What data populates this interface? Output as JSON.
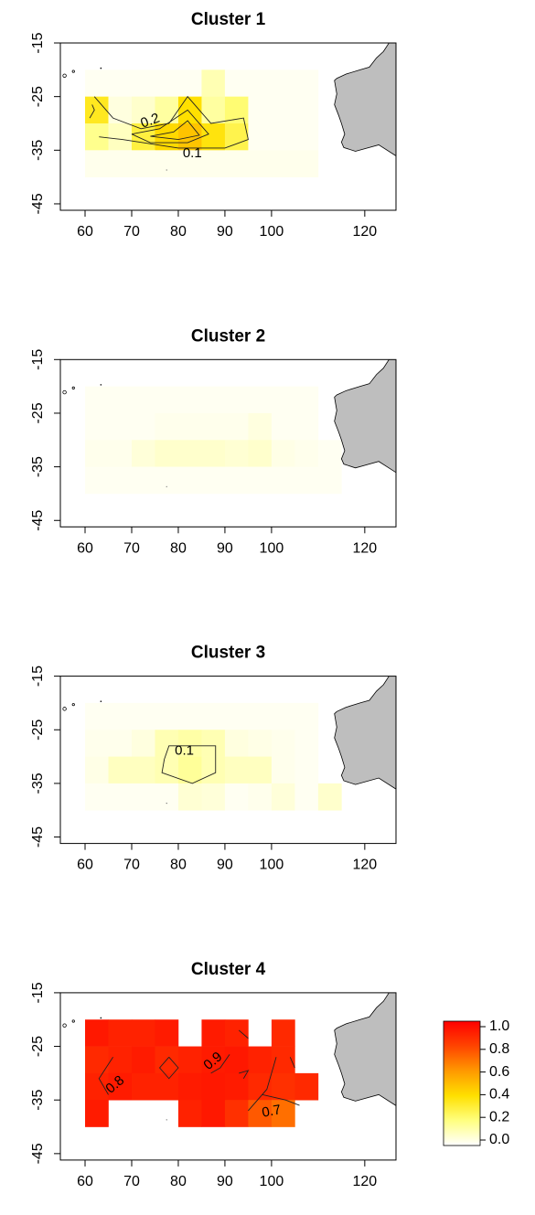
{
  "chart_data": [
    {
      "type": "heatmap",
      "title": "Cluster 1",
      "x": [
        62.5,
        67.5,
        72.5,
        77.5,
        82.5,
        87.5,
        92.5,
        97.5,
        102.5,
        107.5,
        112.5
      ],
      "y": [
        -22.5,
        -27.5,
        -32.5,
        -37.5
      ],
      "z": [
        [
          0.02,
          0.02,
          0.02,
          0.02,
          0.02,
          0.12,
          0.02,
          0.02,
          0.02,
          0.02,
          null
        ],
        [
          0.35,
          0.05,
          0.08,
          0.15,
          0.4,
          0.15,
          0.22,
          0.02,
          0.02,
          0.02,
          null
        ],
        [
          0.18,
          0.1,
          0.3,
          0.42,
          0.48,
          0.38,
          0.28,
          0.02,
          0.02,
          0.02,
          null
        ],
        [
          0.03,
          0.03,
          0.03,
          0.03,
          0.03,
          0.03,
          0.03,
          0.03,
          0.03,
          0.03,
          null
        ]
      ],
      "contour_labels": [
        "0.2",
        "0.1"
      ],
      "xlim": [
        54.7,
        126.7
      ],
      "ylim": [
        -46.2,
        -15
      ],
      "xticks": [
        60,
        70,
        80,
        90,
        100,
        120
      ],
      "yticks": [
        -15,
        -25,
        -35,
        -45
      ]
    },
    {
      "type": "heatmap",
      "title": "Cluster 2",
      "x": [
        62.5,
        67.5,
        72.5,
        77.5,
        82.5,
        87.5,
        92.5,
        97.5,
        102.5,
        107.5,
        112.5
      ],
      "y": [
        -22.5,
        -27.5,
        -32.5,
        -37.5
      ],
      "z": [
        [
          0.02,
          0.02,
          0.02,
          0.02,
          0.02,
          0.02,
          0.02,
          0.02,
          0.02,
          0.02,
          null
        ],
        [
          0.02,
          0.02,
          0.02,
          0.03,
          0.03,
          0.03,
          0.03,
          0.05,
          0.02,
          0.02,
          null
        ],
        [
          0.03,
          0.03,
          0.06,
          0.08,
          0.08,
          0.08,
          0.07,
          0.08,
          0.04,
          0.03,
          0.02
        ],
        [
          0.02,
          0.02,
          0.02,
          0.02,
          0.02,
          0.02,
          0.02,
          0.02,
          0.02,
          0.02,
          0.02
        ]
      ],
      "contour_labels": [],
      "xlim": [
        54.7,
        126.7
      ],
      "ylim": [
        -46.2,
        -15
      ],
      "xticks": [
        60,
        70,
        80,
        90,
        100,
        120
      ],
      "yticks": [
        -15,
        -25,
        -35,
        -45
      ]
    },
    {
      "type": "heatmap",
      "title": "Cluster 3",
      "x": [
        62.5,
        67.5,
        72.5,
        77.5,
        82.5,
        87.5,
        92.5,
        97.5,
        102.5,
        107.5,
        112.5
      ],
      "y": [
        -22.5,
        -27.5,
        -32.5,
        -37.5
      ],
      "z": [
        [
          0.02,
          0.02,
          0.02,
          0.02,
          0.02,
          0.02,
          0.02,
          0.02,
          0.02,
          0.02,
          null
        ],
        [
          0.03,
          0.03,
          0.05,
          0.12,
          0.14,
          0.12,
          0.05,
          0.04,
          0.03,
          0.02,
          null
        ],
        [
          0.04,
          0.1,
          0.1,
          0.12,
          0.16,
          0.12,
          0.1,
          0.1,
          0.03,
          0.02,
          null
        ],
        [
          0.02,
          0.02,
          0.02,
          0.02,
          0.07,
          0.06,
          0.02,
          0.03,
          0.06,
          0.02,
          0.08
        ]
      ],
      "contour_labels": [
        "0.1"
      ],
      "xlim": [
        54.7,
        126.7
      ],
      "ylim": [
        -46.2,
        -15
      ],
      "xticks": [
        60,
        70,
        80,
        90,
        100,
        120
      ],
      "yticks": [
        -15,
        -25,
        -35,
        -45
      ]
    },
    {
      "type": "heatmap",
      "title": "Cluster 4",
      "x": [
        62.5,
        67.5,
        72.5,
        77.5,
        82.5,
        87.5,
        92.5,
        97.5,
        102.5,
        107.5,
        112.5
      ],
      "y": [
        -22.5,
        -27.5,
        -32.5,
        -37.5
      ],
      "z": [
        [
          0.93,
          0.9,
          0.9,
          0.92,
          null,
          0.92,
          0.9,
          null,
          0.88,
          null,
          null
        ],
        [
          0.88,
          0.9,
          0.92,
          0.88,
          0.9,
          0.92,
          0.93,
          0.9,
          0.88,
          null,
          null
        ],
        [
          0.9,
          0.92,
          0.9,
          0.9,
          0.92,
          0.93,
          0.92,
          0.88,
          0.86,
          0.88,
          null
        ],
        [
          0.92,
          null,
          null,
          null,
          0.9,
          0.93,
          0.86,
          0.75,
          0.7,
          null,
          null
        ]
      ],
      "contour_labels": [
        "0.8",
        "0.9",
        "0.7"
      ],
      "xlim": [
        54.7,
        126.7
      ],
      "ylim": [
        -46.2,
        -15
      ],
      "xticks": [
        60,
        70,
        80,
        90,
        100,
        120
      ],
      "yticks": [
        -15,
        -25,
        -35,
        -45
      ]
    }
  ],
  "colorbar": {
    "zlim": [
      0,
      1
    ],
    "colormap": [
      "#ffffff",
      "#ffff80",
      "#ffe000",
      "#ff9900",
      "#ff4400",
      "#ff0000"
    ],
    "ticks": [
      {
        "value": 0,
        "label": "0.0"
      },
      0.2,
      0.4,
      0.6,
      0.8,
      {
        "value": 1,
        "label": "1.0"
      }
    ]
  }
}
